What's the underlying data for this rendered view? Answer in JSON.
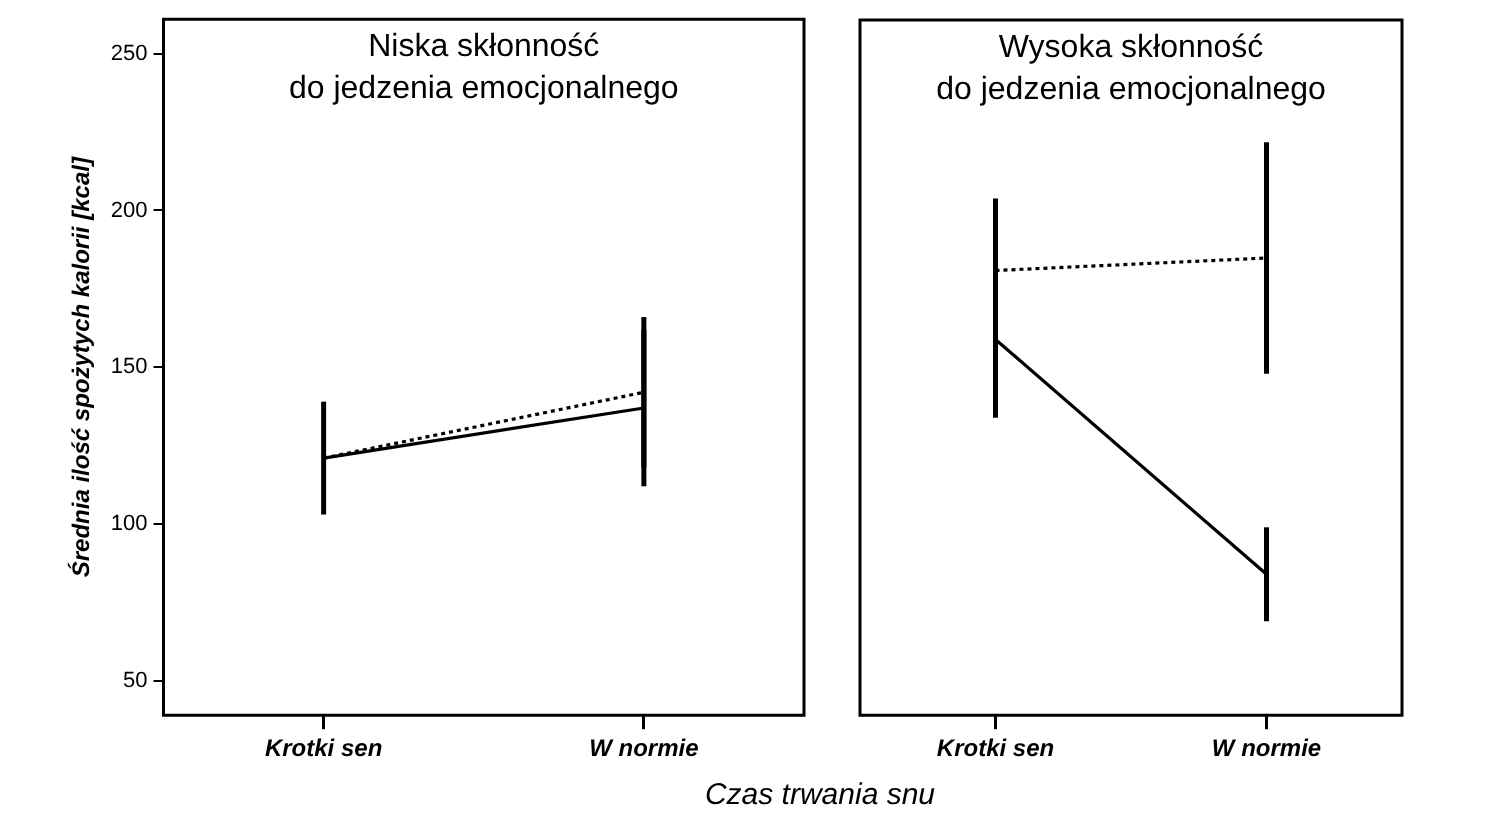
{
  "chart_data": [
    {
      "type": "line",
      "title": "Niska skłonność\ndo jedzenia emocjonalnego",
      "xlabel": "Czas trwania snu",
      "ylabel": "Średnia ilość spożytych kalorii [kcal]",
      "categories": [
        "Krotki sen",
        "W normie"
      ],
      "series": [
        {
          "color": "#000000",
          "line_style": "solid",
          "values": [
            121,
            137
          ],
          "errors": [
            [
              103,
              139
            ],
            [
              112,
              162
            ]
          ]
        },
        {
          "color": "#000000",
          "line_style": "dotted",
          "values": [
            121,
            142
          ],
          "errors": [
            null,
            [
              118,
              166
            ]
          ]
        }
      ],
      "ylim": [
        39,
        261
      ],
      "yticks": [
        50,
        100,
        150,
        200,
        250
      ],
      "grid": false,
      "legend": false,
      "marker": "none",
      "tick_labels": "xy"
    },
    {
      "type": "line",
      "title": "Wysoka skłonność\ndo jedzenia emocjonalnego",
      "categories": [
        "Krotki sen",
        "W normie"
      ],
      "series": [
        {
          "color": "#000000",
          "line_style": "solid",
          "values": [
            159,
            84
          ],
          "errors": [
            [
              134,
              181
            ],
            [
              69,
              99
            ]
          ]
        },
        {
          "color": "#000000",
          "line_style": "dotted",
          "values": [
            181,
            185
          ],
          "errors": [
            [
              159,
              204
            ],
            [
              148,
              222
            ]
          ]
        }
      ],
      "ylim": [
        39,
        261
      ],
      "yticks": [
        50,
        100,
        150,
        200,
        250
      ],
      "grid": false,
      "legend": false,
      "marker": "none",
      "tick_labels": "x"
    }
  ]
}
